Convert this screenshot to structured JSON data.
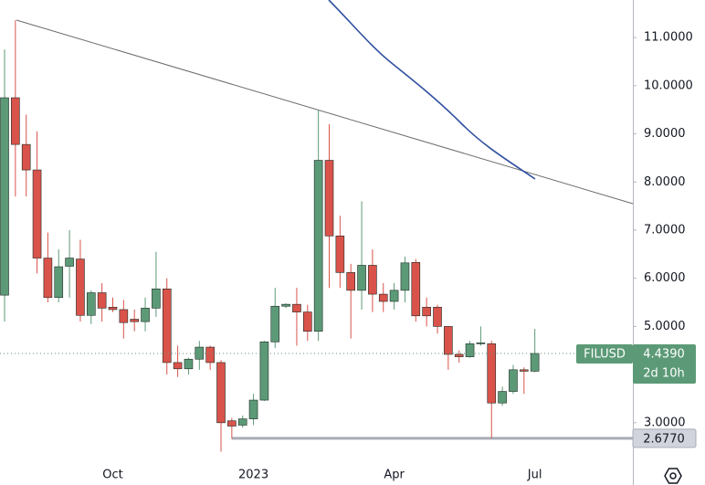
{
  "chart_data": {
    "type": "candlestick",
    "categories": [
      null,
      null,
      null,
      null,
      null,
      null,
      null,
      null,
      null,
      null,
      "Oct",
      null,
      null,
      null,
      null,
      null,
      null,
      null,
      null,
      null,
      null,
      null,
      null,
      "2023",
      null,
      null,
      null,
      null,
      null,
      null,
      null,
      null,
      null,
      null,
      null,
      null,
      "Apr",
      null,
      null,
      null,
      null,
      null,
      null,
      null,
      null,
      null,
      null,
      null,
      null,
      "Jul"
    ],
    "open": [
      5.65,
      9.75,
      8.78,
      8.25,
      6.42,
      5.6,
      6.25,
      6.4,
      5.23,
      5.7,
      5.4,
      5.35,
      5.15,
      5.1,
      5.38,
      5.78,
      4.25,
      4.12,
      4.32,
      4.57,
      4.25,
      3.04,
      2.95,
      3.08,
      3.47,
      4.68,
      5.42,
      5.46,
      5.3,
      4.9,
      8.45,
      6.88,
      6.12,
      5.75,
      6.27,
      5.67,
      5.52,
      5.75,
      6.33,
      5.4,
      5.4,
      5.0,
      4.42,
      4.37,
      4.64,
      4.64,
      3.41,
      3.65,
      4.1,
      4.07
    ],
    "high": [
      10.75,
      11.36,
      9.4,
      9.05,
      6.95,
      6.6,
      7.0,
      6.8,
      5.75,
      5.9,
      5.6,
      5.55,
      5.35,
      5.6,
      6.55,
      6.0,
      4.6,
      4.35,
      4.7,
      4.6,
      4.3,
      3.1,
      3.15,
      3.6,
      4.7,
      5.8,
      5.48,
      5.8,
      5.45,
      9.5,
      9.2,
      7.3,
      6.3,
      7.6,
      6.6,
      5.9,
      5.9,
      6.45,
      6.4,
      5.6,
      5.45,
      5.0,
      4.5,
      4.7,
      5.0,
      4.7,
      3.75,
      4.2,
      4.15,
      4.95
    ],
    "low": [
      5.1,
      7.7,
      7.7,
      6.1,
      5.5,
      5.5,
      5.6,
      5.1,
      5.05,
      5.1,
      5.3,
      4.75,
      4.9,
      4.9,
      5.2,
      4.0,
      3.95,
      4.0,
      4.1,
      4.1,
      2.4,
      2.67,
      2.9,
      2.95,
      3.45,
      4.55,
      5.38,
      4.6,
      4.7,
      4.7,
      5.8,
      5.8,
      4.75,
      5.35,
      5.3,
      5.3,
      5.35,
      5.5,
      5.1,
      5.0,
      4.85,
      4.1,
      4.25,
      4.35,
      4.6,
      2.68,
      3.35,
      3.6,
      3.6,
      4.05
    ],
    "close": [
      9.75,
      8.78,
      8.25,
      6.42,
      5.6,
      6.24,
      6.42,
      5.23,
      5.7,
      5.38,
      5.35,
      5.08,
      5.1,
      5.38,
      5.78,
      4.25,
      4.12,
      4.32,
      4.57,
      4.25,
      3.0,
      2.93,
      3.08,
      3.47,
      4.68,
      5.42,
      5.46,
      5.3,
      4.9,
      8.45,
      6.88,
      6.12,
      5.75,
      6.27,
      5.67,
      5.52,
      5.75,
      6.32,
      5.22,
      5.22,
      5.0,
      4.42,
      4.37,
      4.64,
      4.66,
      3.41,
      3.65,
      4.1,
      4.07,
      4.439
    ],
    "up_color": "#5c9a77",
    "down_color": "#d9534a",
    "ylim": [
      2.2,
      11.78
    ],
    "yticks": [
      {
        "value": 3,
        "label": "3.0000"
      },
      {
        "value": 5,
        "label": "5.0000"
      },
      {
        "value": 6,
        "label": "6.0000"
      },
      {
        "value": 7,
        "label": "7.0000"
      },
      {
        "value": 8,
        "label": "8.0000"
      },
      {
        "value": 9,
        "label": "9.0000"
      },
      {
        "value": 10,
        "label": "10.0000"
      },
      {
        "value": 11,
        "label": "11.0000"
      }
    ],
    "symbol": "FILUSD",
    "last_price": {
      "value": 4.439,
      "label": "4.4390"
    },
    "countdown": "2d 10h",
    "horizontal_line": {
      "value": 2.677,
      "label": "2.6770"
    }
  }
}
